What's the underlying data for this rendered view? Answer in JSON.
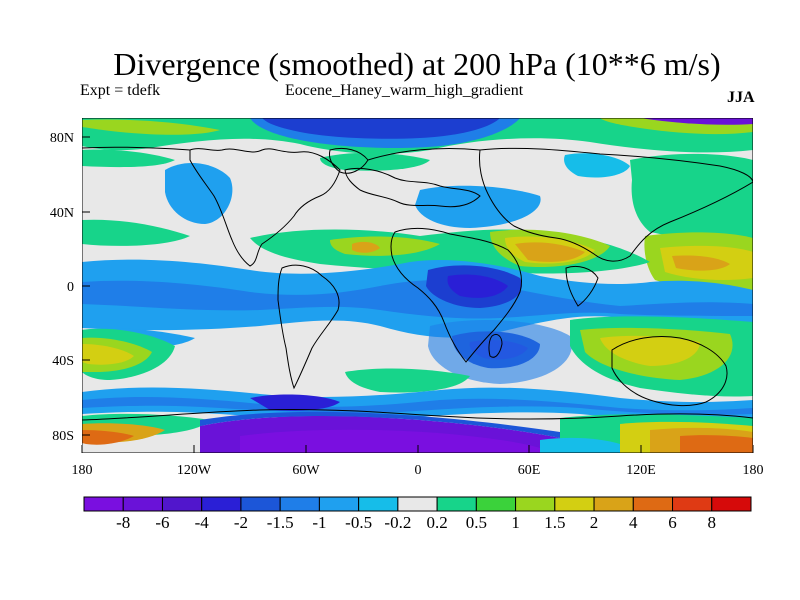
{
  "header": {
    "title": "Divergence (smoothed) at 200 hPa (10**6 m/s)",
    "left_label": "Expt = tdefk",
    "center_label": "Eocene_Haney_warm_high_gradient",
    "right_label": "JJA"
  },
  "axes": {
    "lat_ticks": [
      "80N",
      "40N",
      "0",
      "40S",
      "80S"
    ],
    "lon_ticks": [
      "180",
      "120W",
      "60W",
      "0",
      "60E",
      "120E",
      "180"
    ]
  },
  "colorbar": {
    "colors": [
      "#7a0fe0",
      "#6a12d8",
      "#5116cc",
      "#2a1fd6",
      "#1c56d8",
      "#1f7ee8",
      "#1fa0ef",
      "#16bde9",
      "#e8e8e8",
      "#17d48a",
      "#3bd23b",
      "#9ad61f",
      "#d3cf12",
      "#d9a318",
      "#de6a14",
      "#df3a14",
      "#d60a0a"
    ],
    "labels": [
      "-8",
      "-6",
      "-4",
      "-2",
      "-1.5",
      "-1",
      "-0.5",
      "-0.2",
      "0.2",
      "0.5",
      "1",
      "1.5",
      "2",
      "4",
      "6",
      "8"
    ]
  },
  "colors": {
    "background": "#e8e8e8",
    "neg_strong": "#6a12d8",
    "neg_deep": "#1c3ed0",
    "neg_mid": "#1f7ee8",
    "neg_light": "#16bde9",
    "pos_light": "#17d48a",
    "pos_green": "#3bd23b",
    "pos_yellowgreen": "#9ad61f",
    "pos_yellow": "#d3cf12",
    "pos_orange": "#d9a318",
    "pos_red": "#de6a14"
  }
}
